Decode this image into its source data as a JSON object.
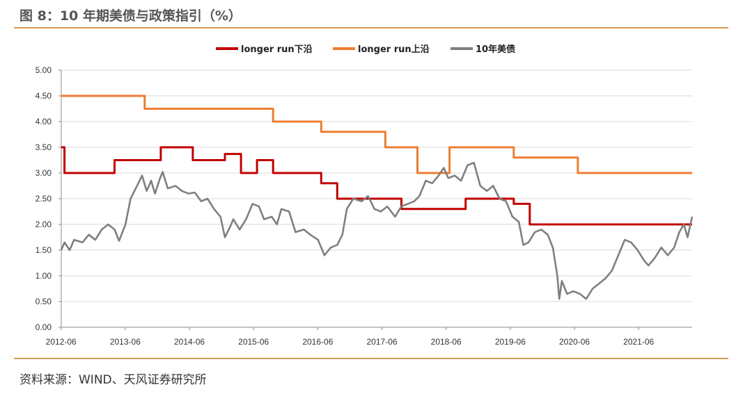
{
  "header": {
    "title": "图 8：10 年期美债与政策指引（%）"
  },
  "footer": {
    "source": "资料来源：WIND、天风证券研究所"
  },
  "chart_data": {
    "type": "line",
    "title": "图 8：10 年期美债与政策指引（%）",
    "xlabel": "",
    "ylabel": "",
    "ylim": [
      0,
      5
    ],
    "yticks": [
      "0.00",
      "0.50",
      "1.00",
      "1.50",
      "2.00",
      "2.50",
      "3.00",
      "3.50",
      "4.00",
      "4.50",
      "5.00"
    ],
    "xticks": [
      "2012-06",
      "2013-06",
      "2014-06",
      "2015-06",
      "2016-06",
      "2017-06",
      "2018-06",
      "2019-06",
      "2020-06",
      "2021-06"
    ],
    "xlim": [
      2012.42,
      2022.25
    ],
    "grid": "horizontal",
    "legend_position": "top-center",
    "series": [
      {
        "name": "longer run下沿",
        "color": "#c00000",
        "step": true,
        "points": [
          [
            2012.42,
            3.5
          ],
          [
            2012.47,
            3.0
          ],
          [
            2013.25,
            3.25
          ],
          [
            2013.97,
            3.5
          ],
          [
            2014.47,
            3.25
          ],
          [
            2014.97,
            3.37
          ],
          [
            2015.22,
            3.0
          ],
          [
            2015.47,
            3.25
          ],
          [
            2015.72,
            3.0
          ],
          [
            2016.47,
            2.8
          ],
          [
            2016.72,
            2.5
          ],
          [
            2017.72,
            2.3
          ],
          [
            2018.72,
            2.5
          ],
          [
            2019.47,
            2.4
          ],
          [
            2019.72,
            2.0
          ],
          [
            2022.25,
            2.0
          ]
        ]
      },
      {
        "name": "longer run上沿",
        "color": "#ed7d31",
        "step": true,
        "points": [
          [
            2012.42,
            4.5
          ],
          [
            2013.72,
            4.25
          ],
          [
            2015.72,
            4.0
          ],
          [
            2016.47,
            3.8
          ],
          [
            2017.47,
            3.5
          ],
          [
            2017.97,
            3.0
          ],
          [
            2018.47,
            3.5
          ],
          [
            2019.47,
            3.3
          ],
          [
            2020.47,
            3.0
          ],
          [
            2022.25,
            3.0
          ]
        ]
      },
      {
        "name": "10年美债",
        "color": "#7f7f7f",
        "step": false,
        "points": [
          [
            2012.42,
            1.5
          ],
          [
            2012.47,
            1.65
          ],
          [
            2012.55,
            1.5
          ],
          [
            2012.62,
            1.7
          ],
          [
            2012.75,
            1.65
          ],
          [
            2012.85,
            1.8
          ],
          [
            2012.95,
            1.7
          ],
          [
            2013.05,
            1.9
          ],
          [
            2013.15,
            2.0
          ],
          [
            2013.25,
            1.9
          ],
          [
            2013.32,
            1.68
          ],
          [
            2013.42,
            2.0
          ],
          [
            2013.5,
            2.5
          ],
          [
            2013.6,
            2.75
          ],
          [
            2013.68,
            2.95
          ],
          [
            2013.75,
            2.65
          ],
          [
            2013.82,
            2.85
          ],
          [
            2013.88,
            2.6
          ],
          [
            2013.96,
            2.9
          ],
          [
            2014.0,
            3.02
          ],
          [
            2014.08,
            2.7
          ],
          [
            2014.2,
            2.75
          ],
          [
            2014.3,
            2.65
          ],
          [
            2014.4,
            2.6
          ],
          [
            2014.5,
            2.62
          ],
          [
            2014.6,
            2.45
          ],
          [
            2014.7,
            2.5
          ],
          [
            2014.8,
            2.3
          ],
          [
            2014.9,
            2.15
          ],
          [
            2014.97,
            1.75
          ],
          [
            2015.05,
            1.95
          ],
          [
            2015.1,
            2.1
          ],
          [
            2015.2,
            1.9
          ],
          [
            2015.3,
            2.1
          ],
          [
            2015.4,
            2.4
          ],
          [
            2015.5,
            2.35
          ],
          [
            2015.58,
            2.1
          ],
          [
            2015.7,
            2.15
          ],
          [
            2015.78,
            2.0
          ],
          [
            2015.85,
            2.3
          ],
          [
            2015.97,
            2.25
          ],
          [
            2016.07,
            1.85
          ],
          [
            2016.2,
            1.9
          ],
          [
            2016.3,
            1.8
          ],
          [
            2016.42,
            1.7
          ],
          [
            2016.52,
            1.4
          ],
          [
            2016.62,
            1.55
          ],
          [
            2016.72,
            1.6
          ],
          [
            2016.8,
            1.8
          ],
          [
            2016.87,
            2.3
          ],
          [
            2016.97,
            2.5
          ],
          [
            2017.1,
            2.45
          ],
          [
            2017.2,
            2.55
          ],
          [
            2017.3,
            2.3
          ],
          [
            2017.4,
            2.25
          ],
          [
            2017.5,
            2.35
          ],
          [
            2017.62,
            2.15
          ],
          [
            2017.72,
            2.35
          ],
          [
            2017.82,
            2.4
          ],
          [
            2017.92,
            2.45
          ],
          [
            2018.0,
            2.55
          ],
          [
            2018.1,
            2.85
          ],
          [
            2018.2,
            2.8
          ],
          [
            2018.3,
            2.95
          ],
          [
            2018.38,
            3.1
          ],
          [
            2018.45,
            2.9
          ],
          [
            2018.55,
            2.95
          ],
          [
            2018.65,
            2.85
          ],
          [
            2018.75,
            3.15
          ],
          [
            2018.85,
            3.2
          ],
          [
            2018.95,
            2.75
          ],
          [
            2019.05,
            2.65
          ],
          [
            2019.15,
            2.75
          ],
          [
            2019.25,
            2.5
          ],
          [
            2019.35,
            2.45
          ],
          [
            2019.45,
            2.15
          ],
          [
            2019.55,
            2.05
          ],
          [
            2019.62,
            1.6
          ],
          [
            2019.7,
            1.65
          ],
          [
            2019.8,
            1.85
          ],
          [
            2019.9,
            1.9
          ],
          [
            2020.0,
            1.8
          ],
          [
            2020.08,
            1.55
          ],
          [
            2020.15,
            1.0
          ],
          [
            2020.18,
            0.55
          ],
          [
            2020.22,
            0.9
          ],
          [
            2020.3,
            0.65
          ],
          [
            2020.4,
            0.7
          ],
          [
            2020.5,
            0.65
          ],
          [
            2020.6,
            0.55
          ],
          [
            2020.7,
            0.75
          ],
          [
            2020.8,
            0.85
          ],
          [
            2020.9,
            0.95
          ],
          [
            2021.0,
            1.1
          ],
          [
            2021.1,
            1.4
          ],
          [
            2021.2,
            1.7
          ],
          [
            2021.3,
            1.65
          ],
          [
            2021.4,
            1.5
          ],
          [
            2021.5,
            1.3
          ],
          [
            2021.57,
            1.2
          ],
          [
            2021.67,
            1.35
          ],
          [
            2021.77,
            1.55
          ],
          [
            2021.87,
            1.4
          ],
          [
            2021.97,
            1.55
          ],
          [
            2022.05,
            1.85
          ],
          [
            2022.12,
            2.0
          ],
          [
            2022.18,
            1.75
          ],
          [
            2022.25,
            2.15
          ]
        ]
      }
    ]
  }
}
